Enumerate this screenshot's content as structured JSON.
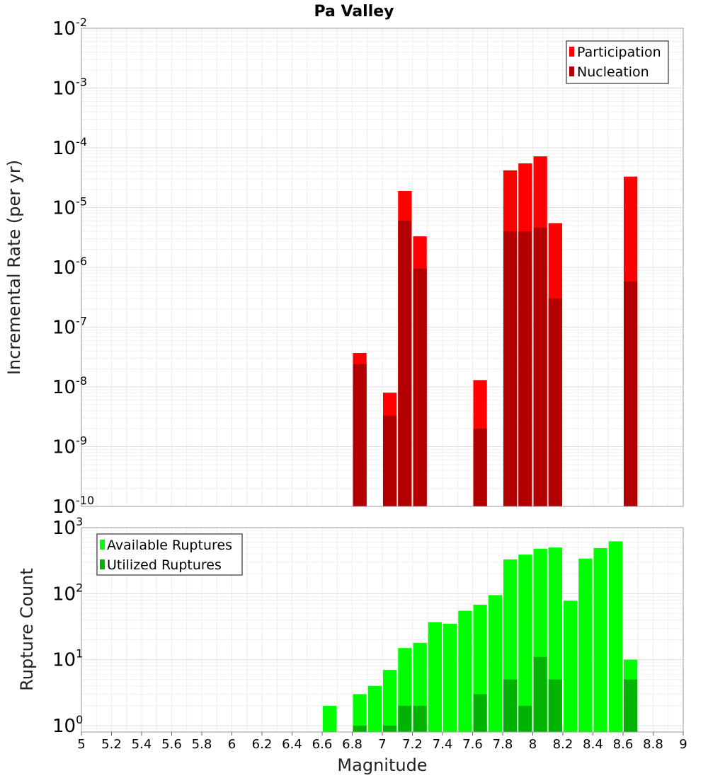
{
  "chart_data": [
    {
      "type": "bar",
      "title": "Pa Valley",
      "ylabel": "Incremental Rate (per yr)",
      "xlabel": "",
      "yscale": "log",
      "ylim": [
        1e-10,
        0.01
      ],
      "xlim": [
        5,
        9
      ],
      "y_tick_labels": [
        {
          "base": "10",
          "exp": "-2"
        },
        {
          "base": "10",
          "exp": "-3"
        },
        {
          "base": "10",
          "exp": "-4"
        },
        {
          "base": "10",
          "exp": "-5"
        },
        {
          "base": "10",
          "exp": "-6"
        },
        {
          "base": "10",
          "exp": "-7"
        },
        {
          "base": "10",
          "exp": "-8"
        },
        {
          "base": "10",
          "exp": "-9"
        },
        {
          "base": "10",
          "exp": "-10"
        }
      ],
      "legend": {
        "position": "top-right"
      },
      "series": [
        {
          "name": "Participation",
          "color": "#ff0000",
          "x": [
            6.85,
            7.05,
            7.15,
            7.25,
            7.65,
            7.85,
            7.95,
            8.05,
            8.15,
            8.65
          ],
          "values": [
            3.7e-08,
            8e-09,
            1.9e-05,
            3.3e-06,
            1.3e-08,
            4.2e-05,
            5.5e-05,
            7.2e-05,
            5.5e-06,
            3.3e-05
          ]
        },
        {
          "name": "Nucleation",
          "color": "#b20000",
          "x": [
            6.85,
            7.05,
            7.15,
            7.25,
            7.65,
            7.85,
            7.95,
            8.05,
            8.15,
            8.65
          ],
          "values": [
            2.4e-08,
            3.3e-09,
            6e-06,
            9.5e-07,
            2e-09,
            4e-06,
            4e-06,
            4.6e-06,
            3e-07,
            5.8e-07
          ]
        }
      ]
    },
    {
      "type": "bar",
      "title": "",
      "ylabel": "Rupture Count",
      "xlabel": "Magnitude",
      "yscale": "log",
      "ylim": [
        0.8,
        1000
      ],
      "xlim": [
        5,
        9
      ],
      "x_tick_labels": [
        "5",
        "5.2",
        "5.4",
        "5.6",
        "5.8",
        "6",
        "6.2",
        "6.4",
        "6.6",
        "6.8",
        "7",
        "7.2",
        "7.4",
        "7.6",
        "7.8",
        "8",
        "8.2",
        "8.4",
        "8.6",
        "8.8",
        "9"
      ],
      "y_tick_labels": [
        {
          "base": "10",
          "exp": "3"
        },
        {
          "base": "10",
          "exp": "2"
        },
        {
          "base": "10",
          "exp": "1"
        },
        {
          "base": "10",
          "exp": "0"
        }
      ],
      "legend": {
        "position": "top-left"
      },
      "series": [
        {
          "name": "Available Ruptures",
          "color": "#00ff00",
          "x": [
            6.65,
            6.85,
            6.95,
            7.05,
            7.15,
            7.25,
            7.35,
            7.45,
            7.55,
            7.65,
            7.75,
            7.85,
            7.95,
            8.05,
            8.15,
            8.25,
            8.35,
            8.45,
            8.55,
            8.65
          ],
          "values": [
            2,
            3,
            4,
            7,
            15,
            18,
            37,
            35,
            55,
            68,
            95,
            330,
            390,
            480,
            500,
            78,
            340,
            490,
            620,
            10
          ]
        },
        {
          "name": "Utilized Ruptures",
          "color": "#00b300",
          "x": [
            6.85,
            7.05,
            7.15,
            7.25,
            7.65,
            7.85,
            7.95,
            8.05,
            8.15,
            8.65
          ],
          "values": [
            1,
            1,
            2,
            2,
            3,
            5,
            2,
            11,
            5,
            5
          ]
        }
      ]
    }
  ]
}
